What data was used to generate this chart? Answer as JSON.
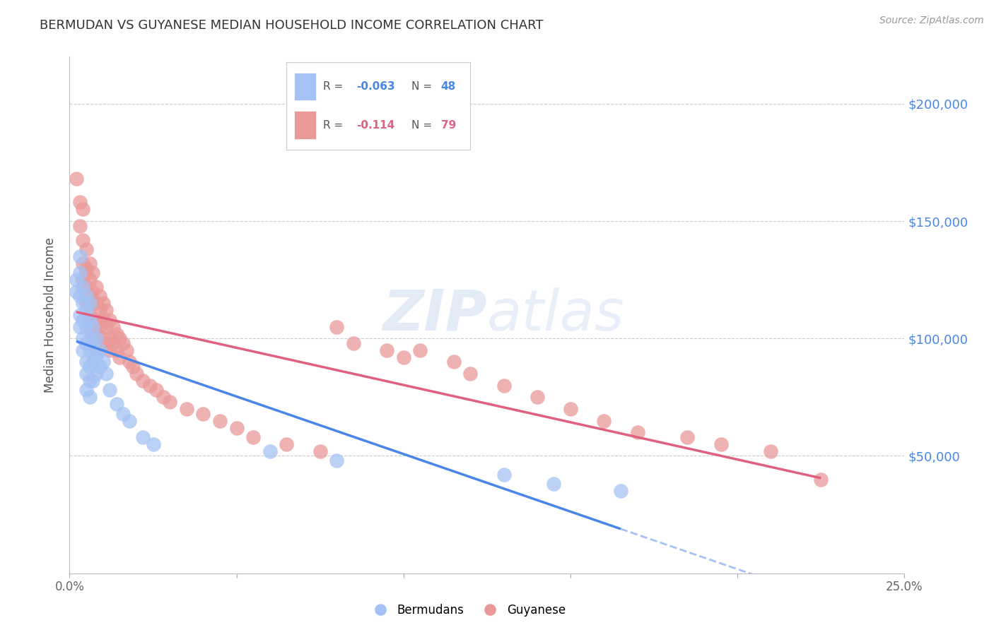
{
  "title": "BERMUDAN VS GUYANESE MEDIAN HOUSEHOLD INCOME CORRELATION CHART",
  "source": "Source: ZipAtlas.com",
  "ylabel": "Median Household Income",
  "xlim": [
    0.0,
    0.25
  ],
  "ylim": [
    0,
    220000
  ],
  "yticks": [
    0,
    50000,
    100000,
    150000,
    200000
  ],
  "ytick_labels": [
    "",
    "$50,000",
    "$100,000",
    "$150,000",
    "$200,000"
  ],
  "xticks": [
    0.0,
    0.05,
    0.1,
    0.15,
    0.2,
    0.25
  ],
  "xtick_labels": [
    "0.0%",
    "",
    "",
    "",
    "",
    "25.0%"
  ],
  "bermudans_color": "#a4c2f4",
  "guyanese_color": "#ea9999",
  "trendline_bermudans_color": "#4a86e8",
  "trendline_guyanese_color": "#e06080",
  "watermark_color": "#d0dff0",
  "background_color": "#ffffff",
  "grid_color": "#cccccc",
  "right_yaxis_color": "#4a86e8",
  "legend_r1": "R = -0.063",
  "legend_n1": "N = 48",
  "legend_r2": "R =  -0.114",
  "legend_n2": "N = 79",
  "bermudans_x": [
    0.002,
    0.002,
    0.003,
    0.003,
    0.003,
    0.003,
    0.003,
    0.004,
    0.004,
    0.004,
    0.004,
    0.004,
    0.005,
    0.005,
    0.005,
    0.005,
    0.005,
    0.005,
    0.005,
    0.006,
    0.006,
    0.006,
    0.006,
    0.006,
    0.006,
    0.006,
    0.007,
    0.007,
    0.007,
    0.007,
    0.008,
    0.008,
    0.008,
    0.009,
    0.009,
    0.01,
    0.011,
    0.012,
    0.014,
    0.016,
    0.018,
    0.022,
    0.025,
    0.06,
    0.08,
    0.13,
    0.145,
    0.165
  ],
  "bermudans_y": [
    125000,
    120000,
    135000,
    128000,
    118000,
    110000,
    105000,
    122000,
    115000,
    108000,
    100000,
    95000,
    118000,
    112000,
    105000,
    98000,
    90000,
    85000,
    78000,
    115000,
    108000,
    100000,
    95000,
    88000,
    82000,
    75000,
    105000,
    98000,
    90000,
    82000,
    100000,
    93000,
    85000,
    95000,
    88000,
    90000,
    85000,
    78000,
    72000,
    68000,
    65000,
    58000,
    55000,
    52000,
    48000,
    42000,
    38000,
    35000
  ],
  "guyanese_x": [
    0.002,
    0.003,
    0.003,
    0.004,
    0.004,
    0.004,
    0.004,
    0.005,
    0.005,
    0.005,
    0.005,
    0.005,
    0.006,
    0.006,
    0.006,
    0.006,
    0.006,
    0.007,
    0.007,
    0.007,
    0.007,
    0.007,
    0.008,
    0.008,
    0.008,
    0.008,
    0.008,
    0.009,
    0.009,
    0.009,
    0.009,
    0.01,
    0.01,
    0.01,
    0.011,
    0.011,
    0.011,
    0.012,
    0.012,
    0.012,
    0.013,
    0.013,
    0.014,
    0.014,
    0.015,
    0.015,
    0.016,
    0.017,
    0.018,
    0.019,
    0.02,
    0.022,
    0.024,
    0.026,
    0.028,
    0.03,
    0.035,
    0.04,
    0.045,
    0.05,
    0.055,
    0.065,
    0.075,
    0.08,
    0.085,
    0.095,
    0.1,
    0.105,
    0.115,
    0.12,
    0.13,
    0.14,
    0.15,
    0.16,
    0.17,
    0.185,
    0.195,
    0.21,
    0.225
  ],
  "guyanese_y": [
    168000,
    158000,
    148000,
    142000,
    155000,
    132000,
    125000,
    138000,
    130000,
    122000,
    115000,
    128000,
    132000,
    125000,
    118000,
    110000,
    105000,
    128000,
    120000,
    115000,
    108000,
    100000,
    122000,
    115000,
    108000,
    102000,
    95000,
    118000,
    112000,
    105000,
    98000,
    115000,
    108000,
    100000,
    112000,
    105000,
    98000,
    108000,
    100000,
    95000,
    105000,
    98000,
    102000,
    95000,
    100000,
    92000,
    98000,
    95000,
    90000,
    88000,
    85000,
    82000,
    80000,
    78000,
    75000,
    73000,
    70000,
    68000,
    65000,
    62000,
    58000,
    55000,
    52000,
    105000,
    98000,
    95000,
    92000,
    95000,
    90000,
    85000,
    80000,
    75000,
    70000,
    65000,
    60000,
    58000,
    55000,
    52000,
    40000
  ]
}
